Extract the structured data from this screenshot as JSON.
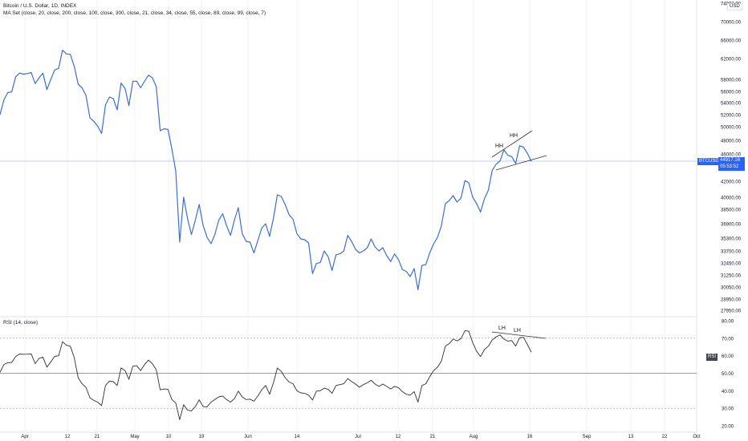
{
  "header": {
    "title": "Bitcoin / U.S. Dollar, 1D, INDEX",
    "indicator": "MA Set (close, 20, close, 200, close, 100, close, 300, close, 21, close, 34, close, 55, close, 89, close, 99, close, 7)",
    "currency": "USD"
  },
  "rsi_panel": {
    "title": "RSI (14, close)",
    "tag": "RSI"
  },
  "price_tag": {
    "symbol": "BTCUSD",
    "value": "44917.16",
    "countdown": "05:53:52"
  },
  "annotations": {
    "hh1": "HH",
    "hh2": "HH",
    "lh1": "LH",
    "lh2": "LH"
  },
  "colors": {
    "price_line": "#2962ff",
    "price_line_drawn": "#3a6fd1",
    "rsi_line": "#2a2e39",
    "price_tag_bg": "#2962ff",
    "grid": "#f0f3fa"
  },
  "chart_data": [
    {
      "type": "line",
      "title": "Bitcoin / U.S. Dollar, 1D, INDEX",
      "y_ticks": [
        "74000.00",
        "70000.00",
        "66000.00",
        "62000.00",
        "58000.00",
        "56000.00",
        "54000.00",
        "52000.00",
        "50000.00",
        "48000.00",
        "46000.00",
        "42000.00",
        "40000.00",
        "38500.00",
        "36900.00",
        "35300.00",
        "33700.00",
        "32450.00",
        "31250.00",
        "30050.00",
        "28950.00",
        "27950.00"
      ],
      "x_ticks": [
        "Apr",
        "12",
        "21",
        "May",
        "10",
        "19",
        "Jun",
        "14",
        "Jul",
        "12",
        "21",
        "Aug",
        "16",
        "Sep",
        "13",
        "22",
        "Oct"
      ],
      "series": [
        {
          "values": [
            52000,
            54500,
            55800,
            55900,
            58500,
            59200,
            59000,
            59100,
            59300,
            57300,
            58300,
            59200,
            56300,
            58000,
            59800,
            60100,
            63800,
            63000,
            62900,
            60500,
            57200,
            56600,
            55300,
            51500,
            50900,
            50100,
            49000,
            53600,
            55000,
            54700,
            52800,
            57400,
            56500,
            53500,
            57700,
            57700,
            56600,
            57700,
            58800,
            58300,
            56800,
            49400,
            49700,
            49600,
            46700,
            43500,
            34800,
            40000,
            37500,
            35700,
            37300,
            39100,
            36700,
            35400,
            34600,
            35700,
            37300,
            38000,
            36700,
            35600,
            37300,
            38700,
            35800,
            34900,
            34800,
            33500,
            35000,
            36400,
            36900,
            35500,
            37500,
            40300,
            40100,
            39100,
            37900,
            37400,
            35800,
            35200,
            35100,
            34700,
            31400,
            32400,
            32500,
            33700,
            33100,
            31700,
            33300,
            33400,
            33700,
            35600,
            34900,
            33900,
            33500,
            33700,
            34100,
            35200,
            34200,
            33700,
            34100,
            33200,
            32600,
            33400,
            32800,
            31800,
            31600,
            31100,
            31900,
            29800,
            32200,
            32300,
            33500,
            34600,
            35400,
            36700,
            39200,
            39600,
            40200,
            39400,
            39900,
            42100,
            41800,
            40000,
            39200,
            38200,
            39800,
            40900,
            43600,
            44500,
            45000,
            46600,
            45800,
            45600,
            44600,
            47200,
            47000,
            46100,
            44900
          ]
        }
      ],
      "annotations": [
        "HH",
        "HH"
      ]
    },
    {
      "type": "line",
      "title": "RSI (14, close)",
      "y_ticks": [
        "80.00",
        "70.00",
        "60.00",
        "50.00",
        "40.00",
        "30.00",
        "20.00"
      ],
      "series": [
        {
          "values": [
            50.5,
            55,
            56,
            56.2,
            59.5,
            61,
            60.8,
            60.9,
            61.1,
            55.5,
            58.5,
            59.2,
            53.5,
            56.5,
            59.6,
            60,
            68,
            66,
            65.5,
            59,
            47.5,
            44,
            42,
            36,
            34.5,
            33.5,
            31.5,
            43,
            45.5,
            45.2,
            43,
            53,
            51.5,
            46.5,
            54,
            54.3,
            51.5,
            55,
            57.5,
            55.5,
            52,
            40.5,
            41,
            40.8,
            35,
            33,
            23.5,
            32,
            29,
            28.5,
            31,
            34.8,
            31,
            30.8,
            33.5,
            35,
            36.5,
            37,
            35,
            33.5,
            35.5,
            39.8,
            36.5,
            35,
            35.2,
            34,
            37,
            40.5,
            43,
            38,
            44.5,
            53,
            51,
            47.5,
            45,
            44,
            40,
            38.8,
            38.5,
            37.5,
            34.7,
            39.8,
            40,
            41.5,
            40.8,
            38.5,
            43,
            43.5,
            44,
            47,
            45.3,
            43.8,
            42,
            43.5,
            44.5,
            46,
            43.8,
            42.5,
            43.8,
            42.5,
            41,
            42.5,
            41.7,
            39.5,
            38,
            37.5,
            39.5,
            33.5,
            43,
            44,
            48,
            51.5,
            53.5,
            57,
            65.5,
            67,
            69.5,
            68.5,
            69.8,
            74.3,
            74,
            67.5,
            62.5,
            59.5,
            63.5,
            65.5,
            69,
            70.8,
            71.9,
            69.5,
            68.3,
            68.7,
            65.5,
            70.3,
            70.5,
            66.5,
            62
          ]
        }
      ],
      "annotations": [
        "LH",
        "LH"
      ]
    }
  ]
}
